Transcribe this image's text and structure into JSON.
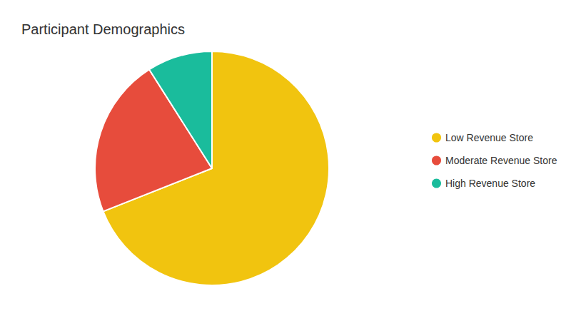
{
  "chart_data": {
    "type": "pie",
    "title": "Participant Demographics",
    "categories": [
      "Low Revenue Store",
      "Moderate Revenue Store",
      "High Revenue Store"
    ],
    "values": [
      69,
      22,
      9
    ],
    "colors": [
      "#f1c40f",
      "#e74c3c",
      "#1abc9c"
    ],
    "legend": "right"
  }
}
